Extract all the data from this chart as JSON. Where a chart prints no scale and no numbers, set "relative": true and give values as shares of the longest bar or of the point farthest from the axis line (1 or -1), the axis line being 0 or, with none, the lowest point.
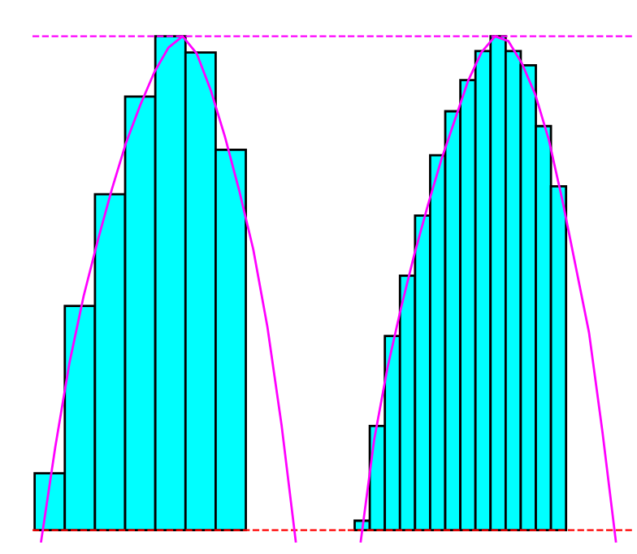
{
  "chart_data": [
    {
      "type": "bar",
      "relative": true,
      "categories": [
        null,
        null,
        null,
        null,
        null,
        null,
        null
      ],
      "series": [
        {
          "color": "#00ffff",
          "values": [
            0.115,
            0.454,
            0.68,
            0.878,
            1,
            0.967,
            0.77
          ]
        }
      ],
      "ref_lines": [
        {
          "axis": "y",
          "value": 1,
          "color": "#ff00ff",
          "line_style": "dashed"
        },
        {
          "axis": "y",
          "value": 0,
          "color": "#ff0000",
          "line_style": "dashed"
        }
      ],
      "tick_labels": false
    },
    {
      "type": "line",
      "relative": true,
      "categories": [
        null,
        null,
        null,
        null,
        null,
        null,
        null,
        null,
        null,
        null,
        null,
        null,
        null,
        null,
        null,
        null,
        null,
        null,
        null
      ],
      "series": [
        {
          "color": "#ff00ff",
          "values": [
            -0.023,
            0.168,
            0.338,
            0.473,
            0.586,
            0.69,
            0.784,
            0.86,
            0.927,
            0.977,
            1.0,
            0.965,
            0.89,
            0.796,
            0.688,
            0.568,
            0.411,
            0.212,
            -0.023
          ]
        }
      ],
      "tick_labels": false
    },
    {
      "type": "bar",
      "relative": true,
      "categories": [
        null,
        null,
        null,
        null,
        null,
        null,
        null,
        null,
        null,
        null,
        null,
        null,
        null,
        null
      ],
      "series": [
        {
          "color": "#00ffff",
          "values": [
            0.019,
            0.211,
            0.393,
            0.515,
            0.637,
            0.759,
            0.848,
            0.911,
            0.97,
            1,
            0.97,
            0.941,
            0.818,
            0.696
          ]
        }
      ],
      "ref_lines": [
        {
          "axis": "y",
          "value": 1,
          "color": "#ff00ff",
          "line_style": "dashed"
        },
        {
          "axis": "y",
          "value": 0,
          "color": "#ff0000",
          "line_style": "dashed"
        }
      ],
      "tick_labels": false
    },
    {
      "type": "line",
      "relative": true,
      "categories": [
        null,
        null,
        null,
        null,
        null,
        null,
        null,
        null,
        null,
        null,
        null,
        null,
        null,
        null,
        null,
        null,
        null,
        null,
        null,
        null
      ],
      "series": [
        {
          "color": "#ff00ff",
          "values": [
            -0.023,
            0.183,
            0.33,
            0.45,
            0.559,
            0.658,
            0.75,
            0.83,
            0.91,
            0.968,
            1.0,
            0.99,
            0.945,
            0.882,
            0.791,
            0.67,
            0.535,
            0.4,
            0.199,
            -0.023
          ]
        }
      ],
      "tick_labels": false
    }
  ]
}
